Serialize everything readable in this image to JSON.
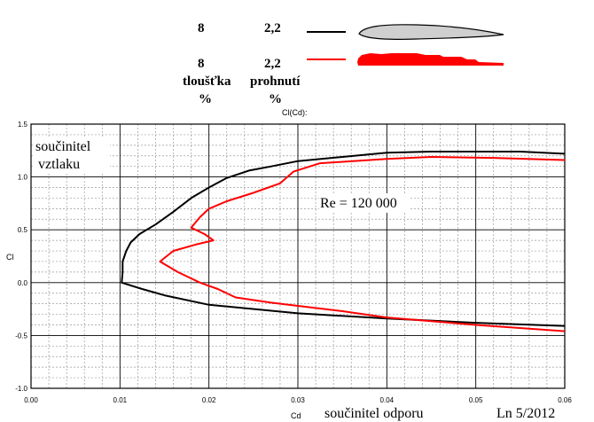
{
  "header": {
    "rows": [
      {
        "thickness": "8",
        "camber": "2,2",
        "color": "#000000",
        "airfoil_fill": "#cfcfcf",
        "airfoil_shape": "thin-airfoil-icon"
      },
      {
        "thickness": "8",
        "camber": "2,2",
        "color": "#ff0000",
        "airfoil_fill": "#ff0000",
        "airfoil_shape": "stepped-airfoil-icon"
      }
    ],
    "thickness_label": "tloušťka",
    "thickness_unit": "%",
    "camber_label": "prohnutí",
    "camber_unit": "%"
  },
  "chart_data": {
    "type": "line",
    "title": "Cl(Cd):",
    "xlabel": "Cd",
    "ylabel": "Cl",
    "xlim": [
      0.0,
      0.06
    ],
    "ylim": [
      -1.0,
      1.5
    ],
    "x_ticks": [
      "0.00",
      "0.01",
      "0.02",
      "0.03",
      "0.04",
      "0.05",
      "0.06"
    ],
    "y_ticks": [
      "1.5",
      "1.0",
      "0.5",
      "0.0",
      "-0.5",
      "-1.0"
    ],
    "grid": true,
    "annotations": {
      "y_axis_desc_1": "součinitel",
      "y_axis_desc_2": "vztlaku",
      "x_axis_desc": "součinitel odporu",
      "reynolds": "Re = 120 000",
      "credit": "Ln 5/2012"
    },
    "series": [
      {
        "color": "#000000",
        "points": [
          [
            0.06,
            -0.41
          ],
          [
            0.05,
            -0.38
          ],
          [
            0.04,
            -0.34
          ],
          [
            0.03,
            -0.29
          ],
          [
            0.02,
            -0.21
          ],
          [
            0.015,
            -0.12
          ],
          [
            0.0125,
            -0.06
          ],
          [
            0.0102,
            0.0
          ],
          [
            0.0103,
            0.1
          ],
          [
            0.0103,
            0.2
          ],
          [
            0.0107,
            0.3
          ],
          [
            0.0112,
            0.38
          ],
          [
            0.0122,
            0.46
          ],
          [
            0.014,
            0.55
          ],
          [
            0.016,
            0.67
          ],
          [
            0.018,
            0.8
          ],
          [
            0.02,
            0.9
          ],
          [
            0.022,
            0.99
          ],
          [
            0.0245,
            1.06
          ],
          [
            0.027,
            1.1
          ],
          [
            0.03,
            1.15
          ],
          [
            0.035,
            1.19
          ],
          [
            0.04,
            1.23
          ],
          [
            0.045,
            1.24
          ],
          [
            0.05,
            1.24
          ],
          [
            0.055,
            1.24
          ],
          [
            0.06,
            1.22
          ]
        ]
      },
      {
        "color": "#ff0000",
        "points": [
          [
            0.06,
            -0.46
          ],
          [
            0.05,
            -0.4
          ],
          [
            0.04,
            -0.33
          ],
          [
            0.035,
            -0.27
          ],
          [
            0.03,
            -0.22
          ],
          [
            0.027,
            -0.19
          ],
          [
            0.023,
            -0.14
          ],
          [
            0.021,
            -0.06
          ],
          [
            0.019,
            0.0
          ],
          [
            0.0165,
            0.1
          ],
          [
            0.0145,
            0.2
          ],
          [
            0.016,
            0.3
          ],
          [
            0.0185,
            0.36
          ],
          [
            0.0205,
            0.4
          ],
          [
            0.0195,
            0.46
          ],
          [
            0.018,
            0.52
          ],
          [
            0.019,
            0.62
          ],
          [
            0.02,
            0.7
          ],
          [
            0.022,
            0.77
          ],
          [
            0.025,
            0.85
          ],
          [
            0.028,
            0.94
          ],
          [
            0.0295,
            1.05
          ],
          [
            0.0325,
            1.13
          ],
          [
            0.04,
            1.17
          ],
          [
            0.045,
            1.19
          ],
          [
            0.052,
            1.18
          ],
          [
            0.06,
            1.16
          ]
        ]
      }
    ]
  }
}
